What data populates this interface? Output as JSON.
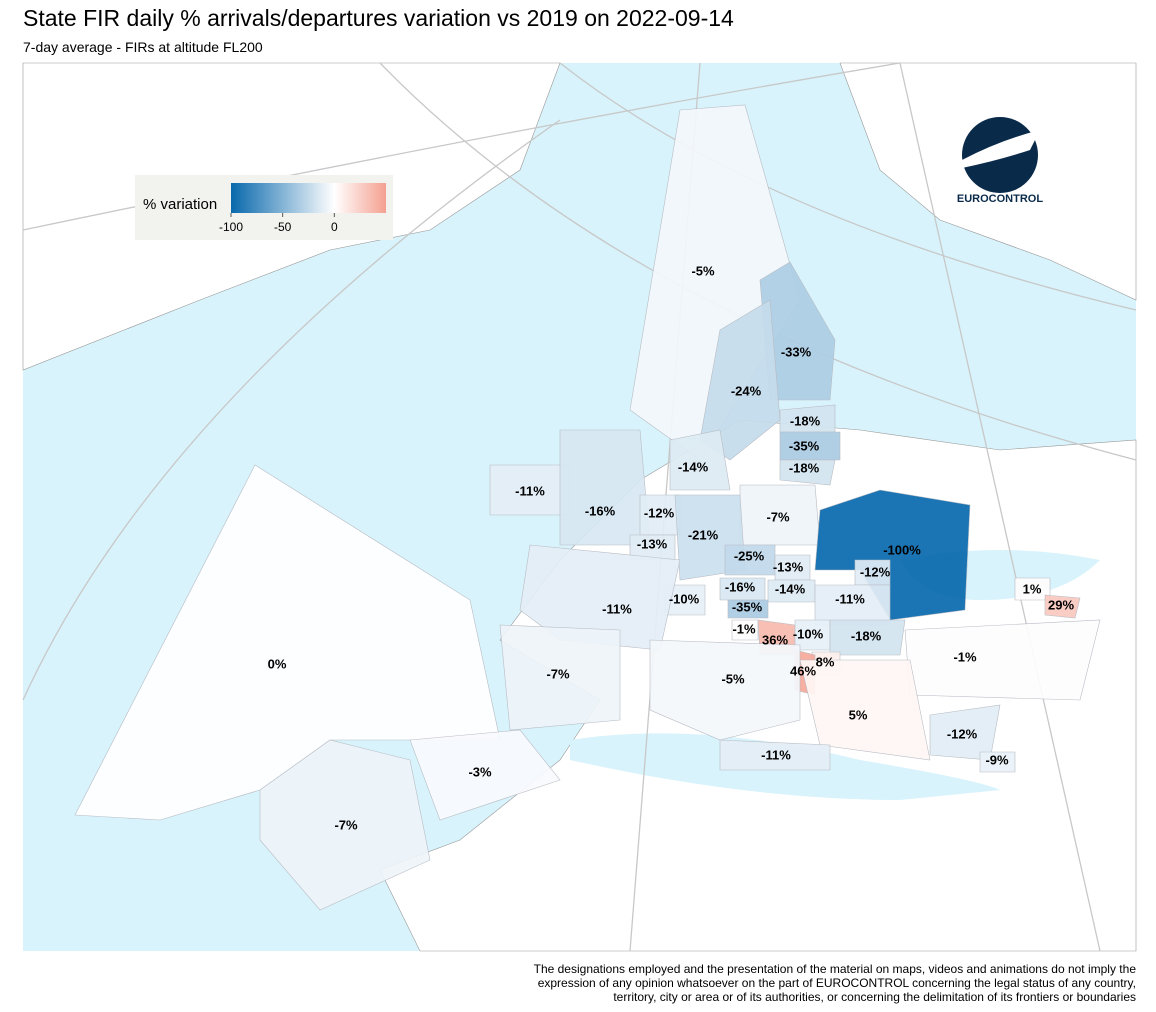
{
  "title": "State FIR daily % arrivals/departures variation vs 2019 on 2022-09-14",
  "subtitle": "7-day average - FIRs at altitude FL200",
  "legend": {
    "title": "% variation",
    "ticks": [
      -100,
      -50,
      0
    ],
    "range": [
      -100,
      50
    ],
    "colors": {
      "low": "#0868ac",
      "mid": "#ffffff",
      "high": "#f4a090"
    }
  },
  "logo": {
    "text": "EUROCONTROL"
  },
  "regions": [
    {
      "label": "-5%",
      "value": -5
    },
    {
      "label": "-33%",
      "value": -33
    },
    {
      "label": "-24%",
      "value": -24
    },
    {
      "label": "-18%",
      "value": -18
    },
    {
      "label": "-35%",
      "value": -35
    },
    {
      "label": "-18%",
      "value": -18
    },
    {
      "label": "-14%",
      "value": -14
    },
    {
      "label": "-11%",
      "value": -11
    },
    {
      "label": "-16%",
      "value": -16
    },
    {
      "label": "-12%",
      "value": -12
    },
    {
      "label": "-7%",
      "value": -7
    },
    {
      "label": "-13%",
      "value": -13
    },
    {
      "label": "-21%",
      "value": -21
    },
    {
      "label": "-25%",
      "value": -25
    },
    {
      "label": "-100%",
      "value": -100
    },
    {
      "label": "-13%",
      "value": -13
    },
    {
      "label": "-12%",
      "value": -12
    },
    {
      "label": "-16%",
      "value": -16
    },
    {
      "label": "-14%",
      "value": -14
    },
    {
      "label": "-10%",
      "value": -10
    },
    {
      "label": "-11%",
      "value": -11
    },
    {
      "label": "1%",
      "value": 1
    },
    {
      "label": "29%",
      "value": 29
    },
    {
      "label": "-11%",
      "value": -11
    },
    {
      "label": "-35%",
      "value": -35
    },
    {
      "label": "-1%",
      "value": -1
    },
    {
      "label": "36%",
      "value": 36
    },
    {
      "label": "-10%",
      "value": -10
    },
    {
      "label": "-18%",
      "value": -18
    },
    {
      "label": "-1%",
      "value": -1
    },
    {
      "label": "8%",
      "value": 8
    },
    {
      "label": "46%",
      "value": 46
    },
    {
      "label": "0%",
      "value": 0
    },
    {
      "label": "-7%",
      "value": -7
    },
    {
      "label": "-5%",
      "value": -5
    },
    {
      "label": "5%",
      "value": 5
    },
    {
      "label": "-12%",
      "value": -12
    },
    {
      "label": "-11%",
      "value": -11
    },
    {
      "label": "-9%",
      "value": -9
    },
    {
      "label": "-3%",
      "value": -3
    },
    {
      "label": "-7%",
      "value": -7
    }
  ],
  "disclaimer": [
    "The designations employed and the presentation of the material on maps, videos and animations do not imply the",
    "expression of any opinion whatsoever on the part of EUROCONTROL concerning the legal status of any country,",
    "territory, city or area or of its authorities, or concerning the delimitation of its frontiers or boundaries"
  ]
}
